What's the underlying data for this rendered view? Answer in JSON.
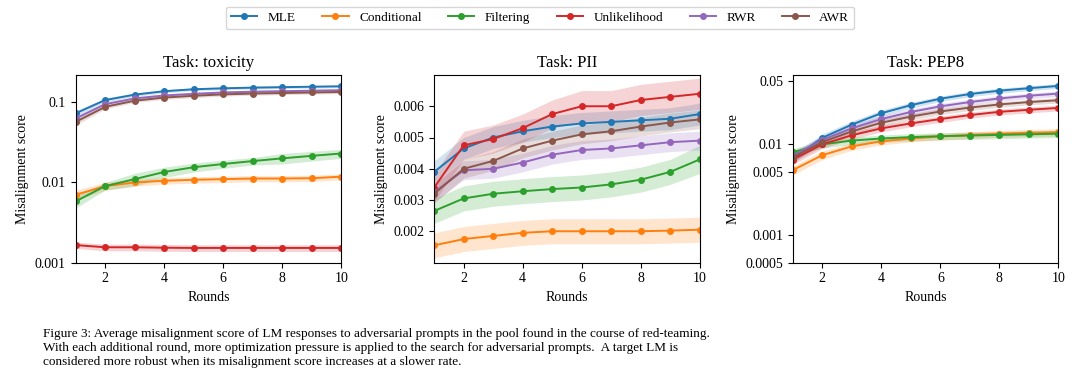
{
  "caption": "Figure 3: Average misalignment score of LM responses to adversarial prompts in the pool found in the course of red-teaming.\nWith each additional round, more optimization pressure is applied to the search for adversarial prompts.  A target LM is\nconsidered more robust when its misalignment score increases at a slower rate.",
  "chart_data": [
    {
      "type": "line",
      "title": "Task: toxicity",
      "xlabel": "Rounds",
      "ylabel": "Misalignment score",
      "legend": "upper center",
      "log": "y",
      "x": [
        1,
        2,
        3,
        4,
        5,
        6,
        7,
        8,
        9,
        10
      ],
      "xlim": [
        1,
        10
      ],
      "xticks": [
        2,
        4,
        6,
        8,
        10
      ],
      "ylim": [
        0.001,
        0.22
      ],
      "yticks": [
        0.001,
        0.01,
        0.1
      ],
      "series": [
        {
          "name": "MLE",
          "marker": "o",
          "values": [
            0.073,
            0.107,
            0.125,
            0.138,
            0.146,
            0.15,
            0.153,
            0.155,
            0.157,
            0.159
          ],
          "std": [
            0.005,
            0.006,
            0.006,
            0.006,
            0.006,
            0.006,
            0.006,
            0.006,
            0.006,
            0.006
          ]
        },
        {
          "name": "Conditional",
          "marker": "o",
          "values": [
            0.007,
            0.009,
            0.01,
            0.0105,
            0.0108,
            0.011,
            0.0112,
            0.0112,
            0.0113,
            0.0118
          ],
          "std": [
            0.001,
            0.001,
            0.001,
            0.001,
            0.001,
            0.001,
            0.001,
            0.001,
            0.001,
            0.001
          ]
        },
        {
          "name": "Filtering",
          "marker": "o",
          "values": [
            0.0058,
            0.009,
            0.011,
            0.0135,
            0.0155,
            0.017,
            0.0185,
            0.02,
            0.0215,
            0.023
          ],
          "std": [
            0.001,
            0.001,
            0.002,
            0.002,
            0.002,
            0.002,
            0.002,
            0.003,
            0.003,
            0.003
          ]
        },
        {
          "name": "Unlikelihood",
          "marker": "o",
          "values": [
            0.00165,
            0.00155,
            0.00155,
            0.00153,
            0.00152,
            0.00152,
            0.00152,
            0.00152,
            0.00152,
            0.00152
          ],
          "std": [
            0.00015,
            0.00015,
            0.00015,
            0.00015,
            0.00015,
            0.00015,
            0.00015,
            0.00015,
            0.00015,
            0.00015
          ]
        },
        {
          "name": "RWR",
          "marker": "o",
          "values": [
            0.063,
            0.095,
            0.112,
            0.122,
            0.128,
            0.133,
            0.136,
            0.138,
            0.14,
            0.142
          ],
          "std": [
            0.005,
            0.005,
            0.006,
            0.006,
            0.006,
            0.006,
            0.006,
            0.006,
            0.006,
            0.006
          ]
        },
        {
          "name": "AWR",
          "marker": "o",
          "values": [
            0.057,
            0.088,
            0.105,
            0.115,
            0.121,
            0.126,
            0.129,
            0.131,
            0.133,
            0.135
          ],
          "std": [
            0.005,
            0.005,
            0.005,
            0.006,
            0.006,
            0.006,
            0.006,
            0.006,
            0.006,
            0.006
          ]
        }
      ]
    },
    {
      "type": "line",
      "title": "Task: PII",
      "xlabel": "Rounds",
      "ylabel": "Misalignment score",
      "x": [
        1,
        2,
        3,
        4,
        5,
        6,
        7,
        8,
        9,
        10
      ],
      "xlim": [
        1,
        10
      ],
      "xticks": [
        2,
        4,
        6,
        8,
        10
      ],
      "ylim": [
        0.001,
        0.007
      ],
      "yticks": [
        0.002,
        0.003,
        0.004,
        0.005,
        0.006
      ],
      "series": [
        {
          "name": "MLE",
          "marker": "o",
          "values": [
            0.0039,
            0.00465,
            0.005,
            0.0052,
            0.00535,
            0.00545,
            0.0055,
            0.00555,
            0.0056,
            0.00575
          ],
          "std": [
            0.00035,
            0.00035,
            0.00035,
            0.00035,
            0.00035,
            0.00035,
            0.00035,
            0.00035,
            0.00035,
            0.00035
          ]
        },
        {
          "name": "Conditional",
          "marker": "o",
          "values": [
            0.00155,
            0.00175,
            0.00185,
            0.00195,
            0.002,
            0.002,
            0.002,
            0.002,
            0.00202,
            0.00205
          ],
          "std": [
            0.0004,
            0.0004,
            0.0004,
            0.0004,
            0.0004,
            0.0004,
            0.0004,
            0.0004,
            0.0004,
            0.0004
          ]
        },
        {
          "name": "Filtering",
          "marker": "o",
          "values": [
            0.00265,
            0.00305,
            0.0032,
            0.00328,
            0.00335,
            0.0034,
            0.0035,
            0.00365,
            0.0039,
            0.0043
          ],
          "std": [
            0.0004,
            0.0004,
            0.0004,
            0.0004,
            0.0004,
            0.0004,
            0.0004,
            0.0004,
            0.0004,
            0.00045
          ]
        },
        {
          "name": "Unlikelihood",
          "marker": "o",
          "values": [
            0.0034,
            0.00475,
            0.00495,
            0.0053,
            0.00575,
            0.006,
            0.006,
            0.0062,
            0.0063,
            0.0064
          ],
          "std": [
            0.00045,
            0.00045,
            0.00045,
            0.00045,
            0.00045,
            0.0005,
            0.0005,
            0.0005,
            0.0005,
            0.0005
          ]
        },
        {
          "name": "RWR",
          "marker": "o",
          "values": [
            0.00325,
            0.00395,
            0.004,
            0.0042,
            0.00445,
            0.0046,
            0.00465,
            0.00475,
            0.00485,
            0.0049
          ],
          "std": [
            0.0003,
            0.0003,
            0.0003,
            0.0003,
            0.0003,
            0.0003,
            0.0003,
            0.0003,
            0.0003,
            0.0003
          ]
        },
        {
          "name": "AWR",
          "marker": "o",
          "values": [
            0.0032,
            0.004,
            0.00425,
            0.00465,
            0.0049,
            0.0051,
            0.0052,
            0.00535,
            0.00548,
            0.00558
          ],
          "std": [
            0.0003,
            0.0003,
            0.0003,
            0.0003,
            0.0003,
            0.0003,
            0.0003,
            0.0003,
            0.0003,
            0.0003
          ]
        }
      ]
    },
    {
      "type": "line",
      "title": "Task: PEP8",
      "xlabel": "Rounds",
      "ylabel": "Misalignment score",
      "log": "y",
      "x": [
        1,
        2,
        3,
        4,
        5,
        6,
        7,
        8,
        9,
        10
      ],
      "xlim": [
        1,
        10
      ],
      "xticks": [
        2,
        4,
        6,
        8,
        10
      ],
      "ylim": [
        0.0005,
        0.058
      ],
      "yticks": [
        0.0005,
        0.001,
        0.005,
        0.01,
        0.05
      ],
      "series": [
        {
          "name": "MLE",
          "marker": "o",
          "values": [
            0.007,
            0.0118,
            0.0165,
            0.022,
            0.027,
            0.0318,
            0.0358,
            0.039,
            0.0415,
            0.044
          ],
          "std": [
            0.0008,
            0.0012,
            0.0015,
            0.0018,
            0.002,
            0.0022,
            0.0024,
            0.0025,
            0.0026,
            0.0027
          ]
        },
        {
          "name": "Conditional",
          "marker": "o",
          "values": [
            0.0052,
            0.0076,
            0.0095,
            0.0108,
            0.0116,
            0.0122,
            0.0127,
            0.0131,
            0.0134,
            0.0136
          ],
          "std": [
            0.0006,
            0.0008,
            0.0009,
            0.00095,
            0.001,
            0.00105,
            0.0011,
            0.00115,
            0.0012,
            0.00125
          ]
        },
        {
          "name": "Filtering",
          "marker": "o",
          "values": [
            0.0082,
            0.01,
            0.011,
            0.0116,
            0.012,
            0.0123,
            0.0125,
            0.0127,
            0.0129,
            0.0131
          ],
          "std": [
            0.00075,
            0.0009,
            0.001,
            0.00105,
            0.0011,
            0.0011,
            0.00115,
            0.00115,
            0.0012,
            0.0012
          ]
        },
        {
          "name": "Unlikelihood",
          "marker": "o",
          "values": [
            0.0068,
            0.01,
            0.0126,
            0.015,
            0.017,
            0.019,
            0.021,
            0.0228,
            0.024,
            0.0252
          ],
          "std": [
            0.0008,
            0.001,
            0.0012,
            0.0013,
            0.0014,
            0.00155,
            0.00165,
            0.00175,
            0.0018,
            0.0019
          ]
        },
        {
          "name": "RWR",
          "marker": "o",
          "values": [
            0.0075,
            0.0112,
            0.015,
            0.019,
            0.0227,
            0.0262,
            0.0292,
            0.032,
            0.0343,
            0.0362
          ],
          "std": [
            0.0009,
            0.0012,
            0.00145,
            0.00165,
            0.00185,
            0.002,
            0.00215,
            0.00225,
            0.00235,
            0.00245
          ]
        },
        {
          "name": "AWR",
          "marker": "o",
          "values": [
            0.0072,
            0.0106,
            0.0139,
            0.0173,
            0.0202,
            0.023,
            0.0254,
            0.0275,
            0.0292,
            0.0306
          ],
          "std": [
            0.00085,
            0.0011,
            0.00135,
            0.00155,
            0.00165,
            0.00175,
            0.00185,
            0.00195,
            0.002,
            0.0021
          ]
        }
      ]
    }
  ]
}
